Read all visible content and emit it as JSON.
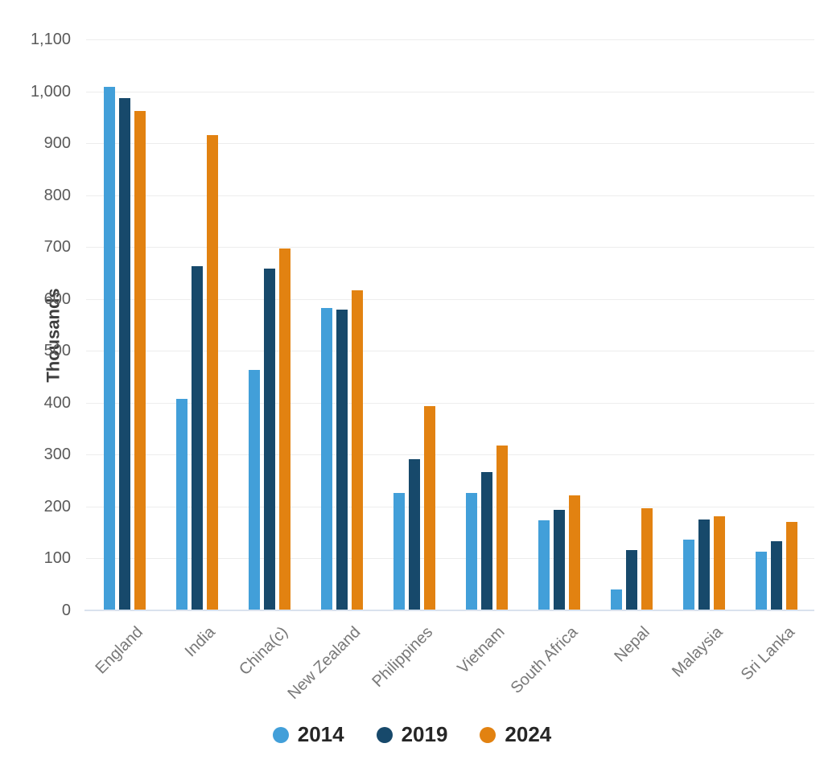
{
  "chart_data": {
    "type": "bar",
    "title": "",
    "xlabel": "",
    "ylabel": "Thousands",
    "ylim": [
      0,
      1100
    ],
    "ytick_step": 100,
    "ytick_labels": [
      "0",
      "100",
      "200",
      "300",
      "400",
      "500",
      "600",
      "700",
      "800",
      "900",
      "1,000",
      "1,100"
    ],
    "grid": true,
    "legend_position": "bottom",
    "categories": [
      "England",
      "India",
      "China(c)",
      "New Zealand",
      "Philippines",
      "Vietnam",
      "South Africa",
      "Nepal",
      "Malaysia",
      "Sri Lanka"
    ],
    "series": [
      {
        "name": "2014",
        "color": "#429FD9",
        "values": [
          1008,
          408,
          464,
          582,
          227,
          226,
          173,
          41,
          137,
          113
        ]
      },
      {
        "name": "2019",
        "color": "#17496B",
        "values": [
          987,
          663,
          659,
          579,
          292,
          266,
          194,
          117,
          175,
          134
        ]
      },
      {
        "name": "2024",
        "color": "#E28211",
        "values": [
          962,
          916,
          698,
          617,
          394,
          318,
          222,
          197,
          182,
          171
        ]
      }
    ],
    "colors": {
      "gridline": "#ededed",
      "baseline": "#d9e2ee",
      "y_tick_text": "#5a5a5a",
      "x_label_text": "#787878",
      "axis_title_text": "#3f3f3f",
      "legend_text": "#262626"
    }
  }
}
